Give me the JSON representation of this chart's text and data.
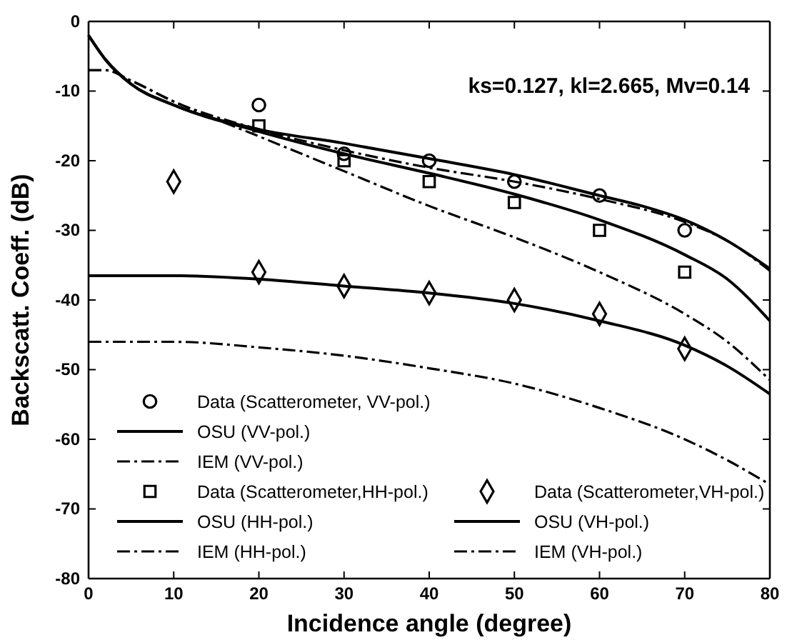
{
  "chart_data": {
    "type": "line",
    "xlabel": "Incidence angle (degree)",
    "ylabel": "Backscatt. Coeff. (dB)",
    "annotations": [
      "ks=0.127, kl=2.665, Mv=0.14"
    ],
    "xlim": [
      0,
      80
    ],
    "ylim": [
      -80,
      0
    ],
    "xticks": [
      0,
      10,
      20,
      30,
      40,
      50,
      60,
      70,
      80
    ],
    "yticks": [
      -80,
      -70,
      -60,
      -50,
      -40,
      -30,
      -20,
      -10,
      0
    ],
    "grid": false,
    "legend": "bottom left",
    "series": [
      {
        "name": "Data (Scatterometer, VV-pol.)",
        "type": "scatter",
        "marker": "circle",
        "color": "#000000",
        "x": [
          20,
          30,
          40,
          50,
          60,
          70
        ],
        "values": [
          -12,
          -19,
          -20,
          -23,
          -25,
          -30
        ]
      },
      {
        "name": "OSU (VV-pol.)",
        "line_style": "solid",
        "color": "#000000",
        "x": [
          0,
          2,
          5,
          10,
          20,
          30,
          40,
          50,
          60,
          65,
          70,
          75,
          80
        ],
        "values": [
          -2,
          -5.5,
          -9,
          -12,
          -15.5,
          -17.5,
          -19.7,
          -22,
          -25,
          -26.5,
          -28.5,
          -31.5,
          -35.5
        ]
      },
      {
        "name": "IEM (VV-pol.)",
        "line_style": "dashed",
        "color": "#000000",
        "x": [
          0,
          2,
          5,
          10,
          20,
          30,
          40,
          50,
          60,
          70,
          75,
          80
        ],
        "values": [
          -7,
          -7,
          -8.5,
          -11.5,
          -15.5,
          -18.5,
          -21,
          -23,
          -25.5,
          -28.8,
          -31.5,
          -35.8
        ]
      },
      {
        "name": "Data (Scatterometer,HH-pol.)",
        "type": "scatter",
        "marker": "square",
        "color": "#000000",
        "x": [
          20,
          30,
          40,
          50,
          60,
          70
        ],
        "values": [
          -15,
          -20,
          -23,
          -26,
          -30,
          -36
        ]
      },
      {
        "name": "OSU (HH-pol.)",
        "line_style": "solid",
        "color": "#000000",
        "x": [
          0,
          2,
          5,
          10,
          20,
          30,
          40,
          50,
          60,
          70,
          75,
          80
        ],
        "values": [
          -2,
          -5.5,
          -9,
          -12,
          -15.8,
          -19,
          -21.8,
          -24.8,
          -28.5,
          -33.5,
          -37,
          -43
        ]
      },
      {
        "name": "IEM (HH-pol.)",
        "line_style": "dashed",
        "color": "#000000",
        "x": [
          0,
          2,
          5,
          10,
          20,
          30,
          40,
          50,
          60,
          70,
          75,
          80
        ],
        "values": [
          -7,
          -7,
          -8.5,
          -11.5,
          -16.5,
          -21.5,
          -26.5,
          -31,
          -36,
          -42,
          -46,
          -51.5
        ]
      },
      {
        "name": "Data (Scatterometer,VH-pol.)",
        "type": "scatter",
        "marker": "diamond",
        "color": "#000000",
        "x": [
          10,
          20,
          30,
          40,
          50,
          60,
          70
        ],
        "values": [
          -23,
          -36,
          -38,
          -39,
          -40,
          -42,
          -47
        ]
      },
      {
        "name": "OSU (VH-pol.)",
        "line_style": "solid",
        "color": "#000000",
        "x": [
          0,
          10,
          20,
          30,
          40,
          50,
          60,
          70,
          75,
          80
        ],
        "values": [
          -36.5,
          -36.5,
          -37,
          -38,
          -39,
          -40.5,
          -43,
          -46.5,
          -49.5,
          -53.5
        ]
      },
      {
        "name": "IEM (VH-pol.)",
        "line_style": "dashed",
        "color": "#000000",
        "x": [
          0,
          10,
          20,
          30,
          40,
          50,
          60,
          70,
          75,
          80
        ],
        "values": [
          -46,
          -46,
          -46.8,
          -48,
          -49.8,
          -52,
          -55.5,
          -60,
          -63,
          -66.5
        ]
      }
    ]
  }
}
